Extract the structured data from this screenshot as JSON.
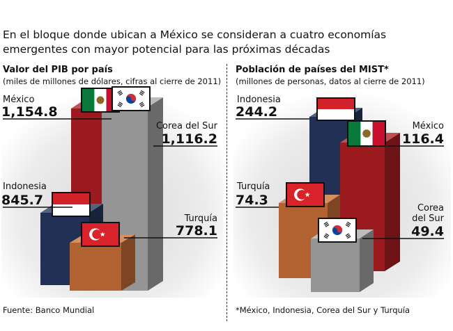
{
  "headline": "En el bloque donde ubican a México se consideran a cuatro economías emergentes con mayor potencial para las próximas décadas",
  "colors": {
    "mexico": "#b01e22",
    "corea": "#a9a9a9",
    "indonesia": "#25375f",
    "turquia": "#c96f36"
  },
  "chart_data": [
    {
      "type": "bar",
      "title": "Valor del PIB por país",
      "subtitle": "(miles de millones de dólares, cifras al cierre de 2011)",
      "categories": [
        "México",
        "Corea del Sur",
        "Indonesia",
        "Turquía"
      ],
      "values": [
        1154.8,
        1116.2,
        845.7,
        778.1
      ],
      "value_labels": [
        "1,154.8",
        "1,116.2",
        "845.7",
        "778.1"
      ],
      "flags": [
        "mexico-flag-icon",
        "south-korea-flag-icon",
        "indonesia-flag-icon",
        "turkey-flag-icon"
      ],
      "source": "Fuente: Banco Mundial"
    },
    {
      "type": "bar",
      "title": "Población de países del MIST*",
      "subtitle": "(millones de personas, datos al cierre de 2011)",
      "categories": [
        "Indonesia",
        "México",
        "Turquía",
        "Corea del Sur"
      ],
      "values": [
        244.2,
        116.4,
        74.3,
        49.4
      ],
      "value_labels": [
        "244.2",
        "116.4",
        "74.3",
        "49.4"
      ],
      "flags": [
        "indonesia-flag-icon",
        "mexico-flag-icon",
        "turkey-flag-icon",
        "south-korea-flag-icon"
      ],
      "footnote": "*México, Indonesia, Corea del Sur y Turquía"
    }
  ]
}
